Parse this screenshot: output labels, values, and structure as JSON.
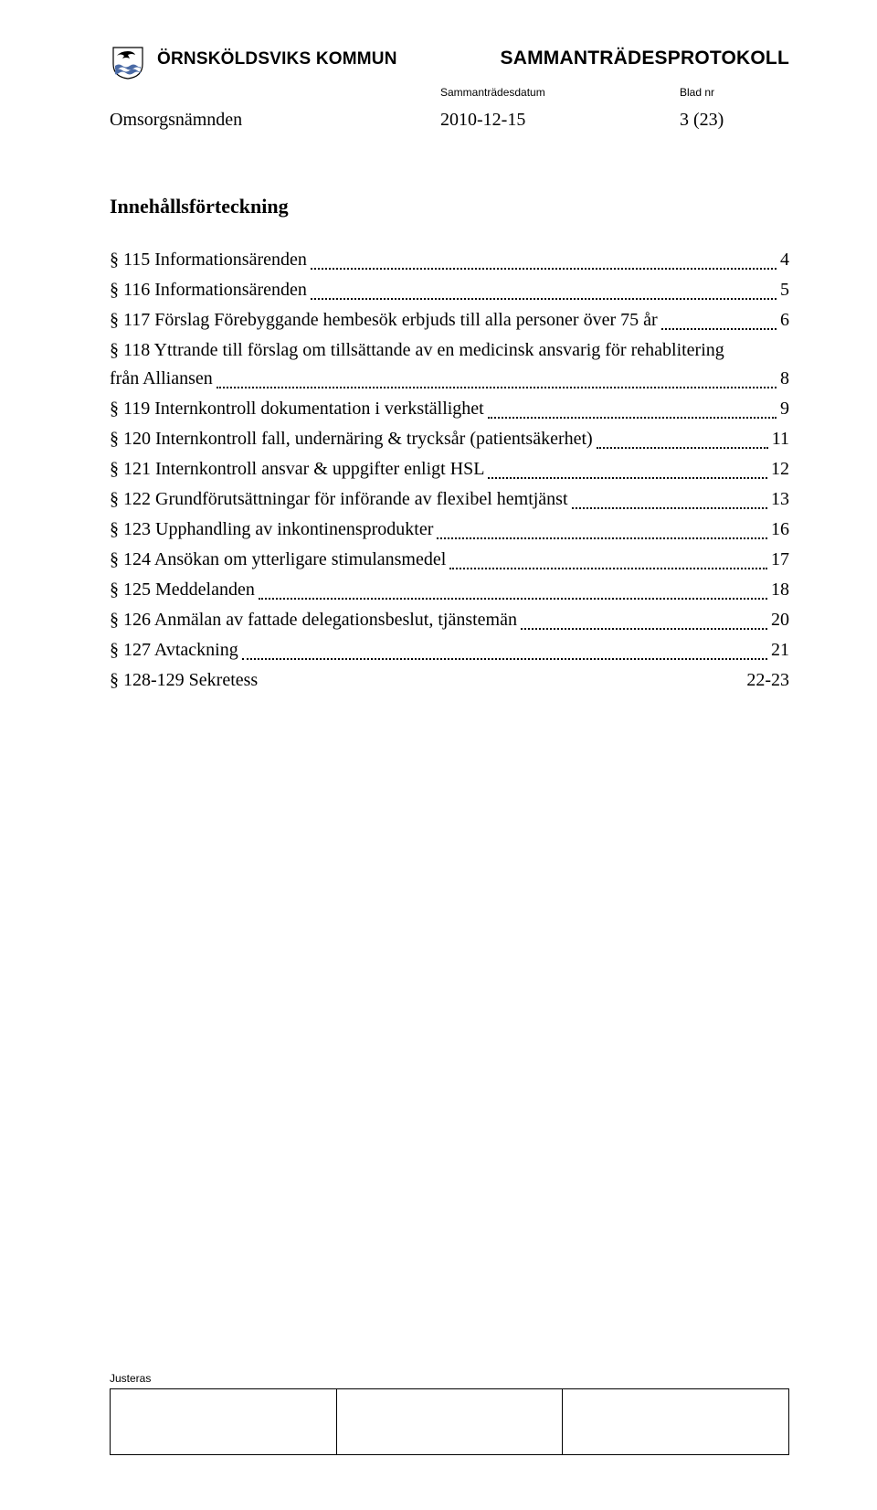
{
  "header": {
    "org_name": "ÖRNSKÖLDSVIKS KOMMUN",
    "doc_title": "SAMMANTRÄDESPROTOKOLL",
    "date_label": "Sammanträdesdatum",
    "page_label": "Blad nr",
    "committee": "Omsorgsnämnden",
    "date_value": "2010-12-15",
    "page_value": "3 (23)",
    "logo_colors": {
      "shield_fill": "#ffffff",
      "shield_stroke": "#000000",
      "bird": "#000000",
      "waves": "#4a6aa5"
    }
  },
  "toc": {
    "title": "Innehållsförteckning",
    "entries": [
      {
        "label": "§ 115 Informationsärenden",
        "page": "4"
      },
      {
        "label": "§ 116 Informationsärenden",
        "page": "5"
      },
      {
        "label": "§ 117 Förslag Förebyggande hembesök erbjuds till alla personer över 75 år",
        "page": "6"
      },
      {
        "label_line1": "§ 118 Yttrande till förslag om tillsättande av en medicinsk ansvarig för  rehablitering",
        "label_line2": "från Alliansen",
        "page": "8"
      },
      {
        "label": "§ 119 Internkontroll dokumentation i verkställighet",
        "page": "9"
      },
      {
        "label": "§ 120 Internkontroll fall, undernäring & trycksår (patientsäkerhet)",
        "page": "11"
      },
      {
        "label": "§ 121 Internkontroll ansvar & uppgifter enligt HSL",
        "page": "12"
      },
      {
        "label": "§ 122 Grundförutsättningar för införande av flexibel hemtjänst",
        "page": "13"
      },
      {
        "label": "§ 123 Upphandling av inkontinensprodukter",
        "page": "16"
      },
      {
        "label": "§ 124 Ansökan om ytterligare stimulansmedel",
        "page": "17"
      },
      {
        "label": "§ 125 Meddelanden",
        "page": "18"
      },
      {
        "label": "§ 126 Anmälan av fattade delegationsbeslut, tjänstemän",
        "page": "20"
      },
      {
        "label": "§ 127 Avtackning",
        "page": "21"
      },
      {
        "label": "§ 128-129 Sekretess",
        "page": "22-23",
        "no_leader": true
      }
    ]
  },
  "footer": {
    "label": "Justeras"
  }
}
